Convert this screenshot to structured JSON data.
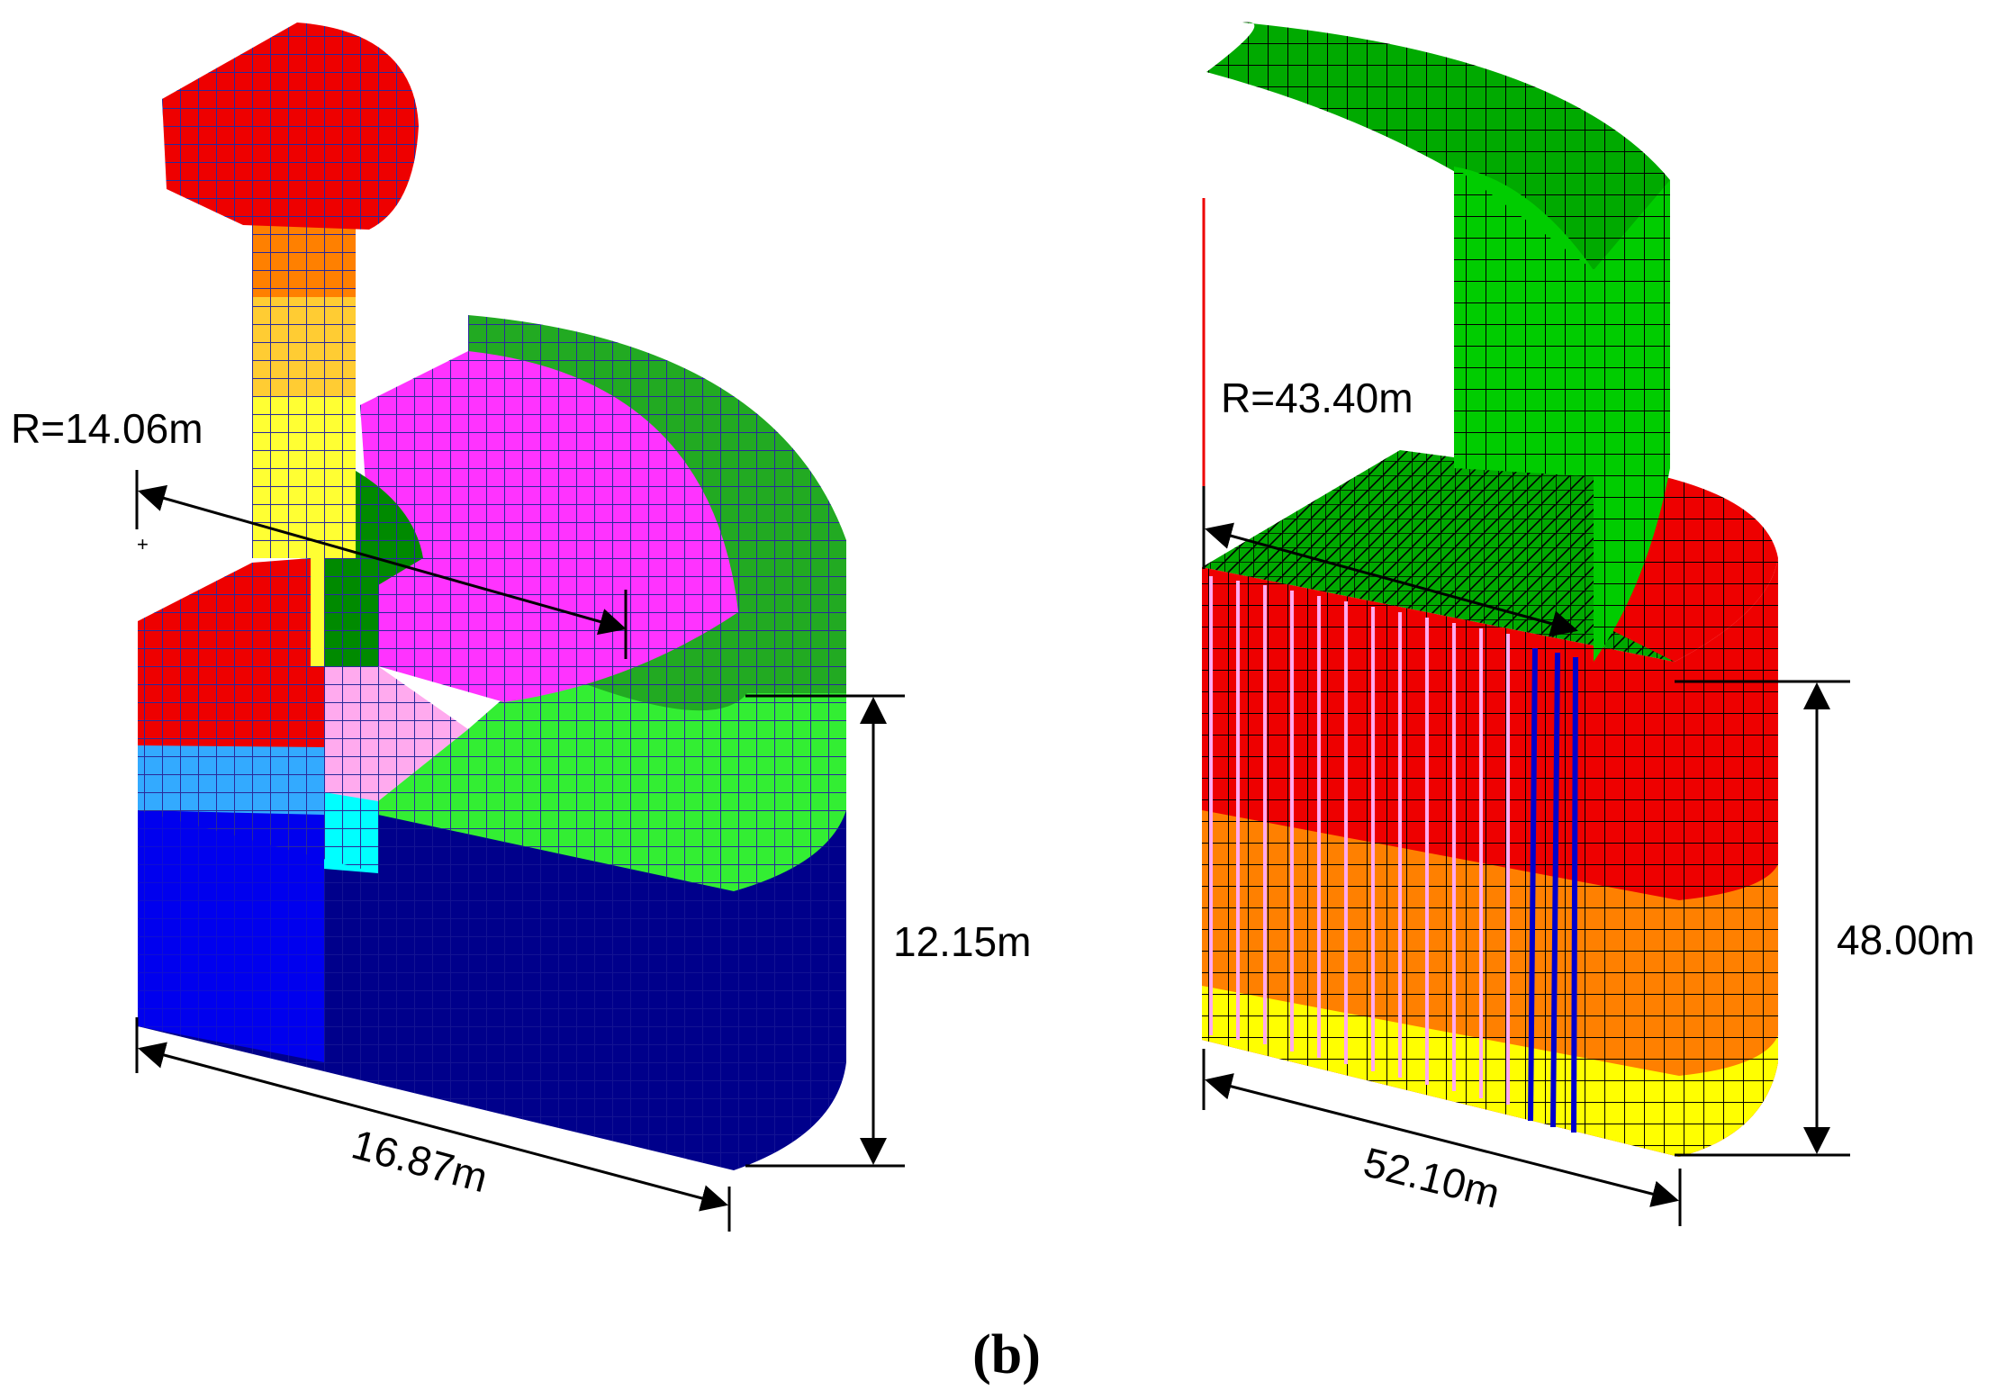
{
  "figure": {
    "caption": "(b)",
    "left_model": {
      "radius_label": "R=14.06m",
      "height_label": "12.15m",
      "width_label": "16.87m"
    },
    "right_model": {
      "radius_label": "R=43.40m",
      "height_label": "48.00m",
      "width_label": "52.10m"
    }
  },
  "colors": {
    "red": "#ee0000",
    "orange": "#ff8000",
    "yellow": "#ffff00",
    "light_yellow": "#ffcc33",
    "green": "#00cc00",
    "dark_green": "#008a00",
    "magenta": "#ff33ff",
    "pink": "#ffaaee",
    "blue": "#0000ee",
    "dark_blue": "#00008b",
    "light_blue": "#33aaff",
    "cyan": "#00ffff",
    "mesh_line_left": "#3333aa",
    "mesh_line_right": "#000000",
    "red_axis": "#ee0000"
  }
}
